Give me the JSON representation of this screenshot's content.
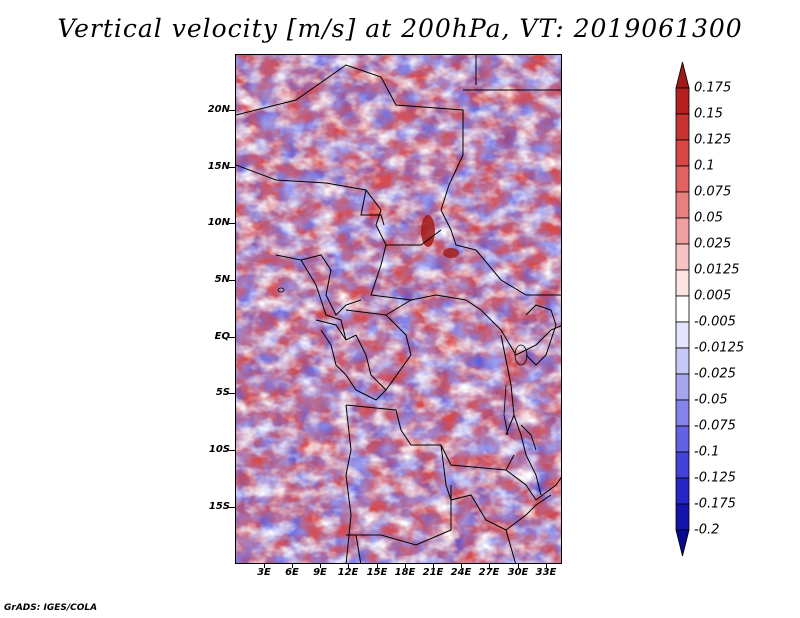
{
  "title": "Vertical velocity [m/s] at 200hPa, VT: 2019061300",
  "credit": "GrADS: IGES/COLA",
  "lat_labels": [
    "20N",
    "15N",
    "10N",
    "5N",
    "EQ",
    "5S",
    "10S",
    "15S"
  ],
  "lon_labels": [
    "3E",
    "6E",
    "9E",
    "12E",
    "15E",
    "18E",
    "21E",
    "24E",
    "27E",
    "30E",
    "33E"
  ],
  "colorbar": {
    "labels": [
      "0.175",
      "0.15",
      "0.125",
      "0.1",
      "0.075",
      "0.05",
      "0.025",
      "0.0125",
      "0.005",
      "-0.005",
      "-0.0125",
      "-0.025",
      "-0.05",
      "-0.075",
      "-0.1",
      "-0.125",
      "-0.175",
      "-0.2"
    ],
    "colors": [
      "#a01818",
      "#b42020",
      "#c83232",
      "#d84646",
      "#e06262",
      "#e88080",
      "#f0a0a0",
      "#f6c4c4",
      "#fce4e4",
      "#ffffff",
      "#e4e4fc",
      "#c8c8f6",
      "#a6a6f0",
      "#8484ea",
      "#6262e2",
      "#4242d6",
      "#2626c4",
      "#1414aa",
      "#0a0a8c"
    ]
  }
}
